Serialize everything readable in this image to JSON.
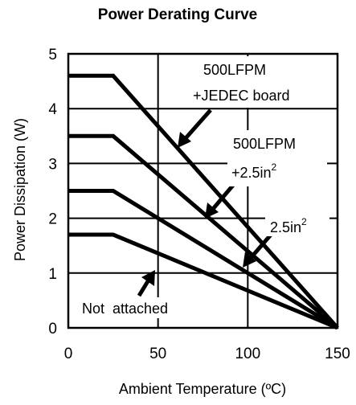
{
  "chart_data": {
    "type": "line",
    "title": "Power Derating Curve",
    "xlabel": "Ambient Temperature (ºC)",
    "ylabel": "Power Dissipation (W)",
    "xlim": [
      0,
      150
    ],
    "ylim": [
      0,
      5
    ],
    "xticks": [
      "0",
      "50",
      "100",
      "150"
    ],
    "yticks": [
      "0",
      "1",
      "2",
      "3",
      "4",
      "5"
    ],
    "grid": true,
    "series": [
      {
        "name": "500LFPM +JEDEC board",
        "x": [
          0,
          25,
          150
        ],
        "y": [
          4.6,
          4.6,
          0
        ]
      },
      {
        "name": "500LFPM +2.5in2",
        "x": [
          0,
          25,
          150
        ],
        "y": [
          3.5,
          3.5,
          0
        ]
      },
      {
        "name": "2.5in2",
        "x": [
          0,
          25,
          150
        ],
        "y": [
          2.5,
          2.5,
          0
        ]
      },
      {
        "name": "Not attached",
        "x": [
          0,
          25,
          150
        ],
        "y": [
          1.7,
          1.7,
          0
        ]
      }
    ],
    "annotations": [
      {
        "lines": [
          "500LFPM",
          "+JEDEC board"
        ]
      },
      {
        "lines": [
          "500LFPM",
          "+2.5in",
          "2"
        ]
      },
      {
        "lines": [
          "2.5in",
          "2"
        ]
      },
      {
        "lines": [
          "Not  attached"
        ]
      }
    ]
  }
}
